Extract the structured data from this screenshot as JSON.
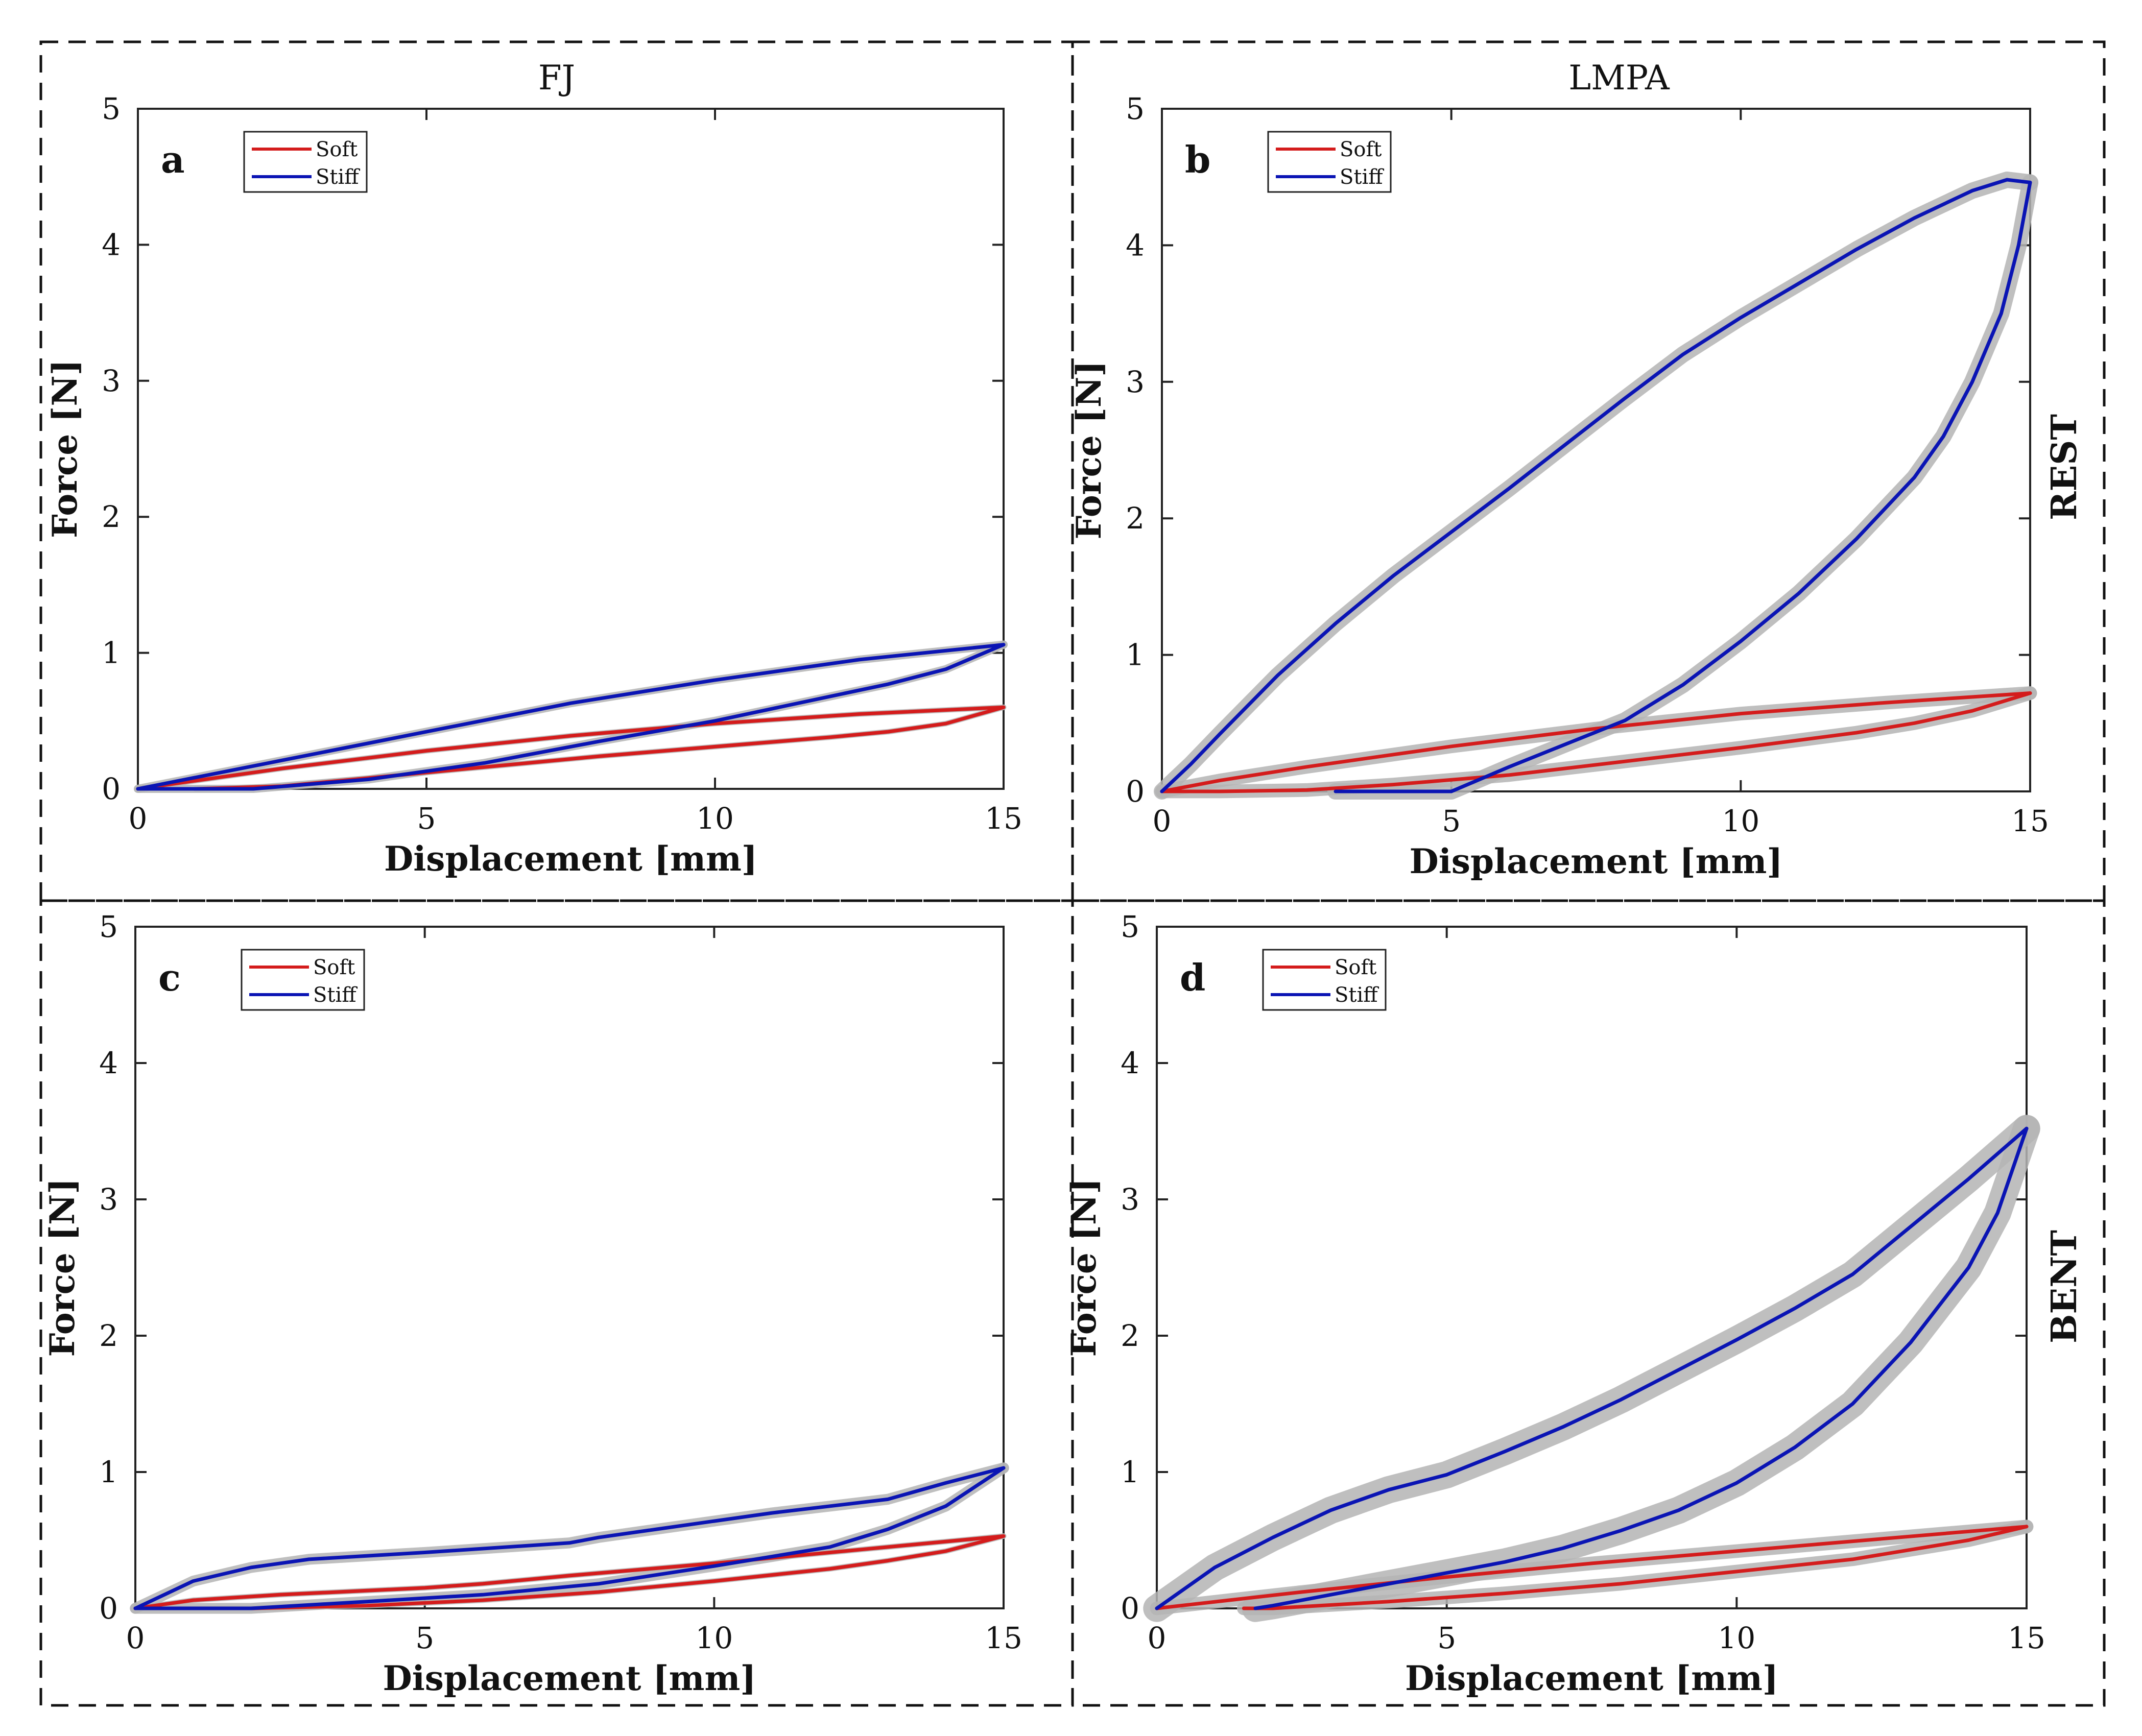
{
  "figure": {
    "column_titles": [
      "FJ",
      "LMPA"
    ],
    "row_titles": [
      "REST",
      "BENT"
    ]
  },
  "colors": {
    "soft": "#d41c1c",
    "stiff": "#0a14b4",
    "band": "#b4b4b4",
    "axis": "#222222",
    "dashes": "#111111"
  },
  "chart_data": [
    {
      "type": "line",
      "panel": "a",
      "title": "FJ",
      "xlabel": "Displacement [mm]",
      "ylabel": "Force [N]",
      "xlim": [
        0,
        15
      ],
      "ylim": [
        0,
        5
      ],
      "xticks": [
        "0",
        "5",
        "10",
        "15"
      ],
      "yticks": [
        "0",
        "1",
        "2",
        "3",
        "4",
        "5"
      ],
      "legend": [
        "Soft",
        "Stiff"
      ],
      "legend_position": "top-left",
      "series": [
        {
          "name": "Soft",
          "band": 0.02,
          "loading": [
            [
              0,
              0
            ],
            [
              1,
              0.06
            ],
            [
              2.5,
              0.15
            ],
            [
              5,
              0.28
            ],
            [
              7.5,
              0.39
            ],
            [
              10,
              0.48
            ],
            [
              12.5,
              0.55
            ],
            [
              15,
              0.6
            ]
          ],
          "unloading": [
            [
              15,
              0.6
            ],
            [
              14,
              0.48
            ],
            [
              13,
              0.42
            ],
            [
              12,
              0.38
            ],
            [
              10,
              0.31
            ],
            [
              8,
              0.24
            ],
            [
              6,
              0.16
            ],
            [
              4,
              0.08
            ],
            [
              2.5,
              0.02
            ],
            [
              1,
              0
            ]
          ]
        },
        {
          "name": "Stiff",
          "band": 0.03,
          "loading": [
            [
              0,
              0
            ],
            [
              2.5,
              0.21
            ],
            [
              5,
              0.42
            ],
            [
              7.5,
              0.63
            ],
            [
              10,
              0.8
            ],
            [
              12.5,
              0.95
            ],
            [
              15,
              1.06
            ]
          ],
          "unloading": [
            [
              15,
              1.06
            ],
            [
              14,
              0.88
            ],
            [
              13,
              0.77
            ],
            [
              12,
              0.68
            ],
            [
              10,
              0.5
            ],
            [
              8,
              0.35
            ],
            [
              6,
              0.19
            ],
            [
              4,
              0.07
            ],
            [
              2,
              0
            ],
            [
              0,
              0
            ]
          ]
        }
      ]
    },
    {
      "type": "line",
      "panel": "b",
      "title": "LMPA",
      "row_title": "REST",
      "xlabel": "Displacement [mm]",
      "ylabel": "Force [N]",
      "xlim": [
        0,
        15
      ],
      "ylim": [
        0,
        5
      ],
      "xticks": [
        "0",
        "5",
        "10",
        "15"
      ],
      "yticks": [
        "0",
        "1",
        "2",
        "3",
        "4",
        "5"
      ],
      "legend": [
        "Soft",
        "Stiff"
      ],
      "legend_position": "top-left",
      "series": [
        {
          "name": "Soft",
          "band": 0.05,
          "loading": [
            [
              0,
              0
            ],
            [
              1,
              0.08
            ],
            [
              2.5,
              0.18
            ],
            [
              5,
              0.33
            ],
            [
              7.5,
              0.46
            ],
            [
              10,
              0.57
            ],
            [
              12.5,
              0.65
            ],
            [
              15,
              0.72
            ]
          ],
          "unloading": [
            [
              15,
              0.72
            ],
            [
              14,
              0.59
            ],
            [
              13,
              0.5
            ],
            [
              12,
              0.43
            ],
            [
              10,
              0.32
            ],
            [
              8,
              0.22
            ],
            [
              6,
              0.12
            ],
            [
              4,
              0.05
            ],
            [
              2.5,
              0.01
            ],
            [
              1,
              0
            ],
            [
              0,
              0
            ]
          ]
        },
        {
          "name": "Stiff",
          "band": 0.06,
          "loading": [
            [
              0,
              0
            ],
            [
              0.5,
              0.2
            ],
            [
              1,
              0.42
            ],
            [
              2,
              0.85
            ],
            [
              3,
              1.23
            ],
            [
              4,
              1.58
            ],
            [
              5,
              1.9
            ],
            [
              6,
              2.22
            ],
            [
              7,
              2.55
            ],
            [
              8,
              2.88
            ],
            [
              9,
              3.2
            ],
            [
              10,
              3.47
            ],
            [
              11,
              3.72
            ],
            [
              12,
              3.97
            ],
            [
              13,
              4.2
            ],
            [
              14,
              4.4
            ],
            [
              14.6,
              4.48
            ],
            [
              15,
              4.46
            ]
          ],
          "unloading": [
            [
              15,
              4.46
            ],
            [
              14.8,
              4.0
            ],
            [
              14.5,
              3.5
            ],
            [
              14,
              3.0
            ],
            [
              13.5,
              2.6
            ],
            [
              13,
              2.3
            ],
            [
              12,
              1.85
            ],
            [
              11,
              1.45
            ],
            [
              10,
              1.1
            ],
            [
              9,
              0.78
            ],
            [
              8,
              0.52
            ],
            [
              7,
              0.35
            ],
            [
              6,
              0.18
            ],
            [
              5,
              0
            ],
            [
              4,
              0
            ],
            [
              3,
              0
            ]
          ]
        }
      ]
    },
    {
      "type": "line",
      "panel": "c",
      "xlabel": "Displacement [mm]",
      "ylabel": "Force [N]",
      "xlim": [
        0,
        15
      ],
      "ylim": [
        0,
        5
      ],
      "xticks": [
        "0",
        "5",
        "10",
        "15"
      ],
      "yticks": [
        "0",
        "1",
        "2",
        "3",
        "4",
        "5"
      ],
      "legend": [
        "Soft",
        "Stiff"
      ],
      "legend_position": "top-left",
      "series": [
        {
          "name": "Soft",
          "band": 0.02,
          "loading": [
            [
              0,
              0
            ],
            [
              1,
              0.06
            ],
            [
              2.5,
              0.1
            ],
            [
              5,
              0.15
            ],
            [
              6,
              0.18
            ],
            [
              7.5,
              0.24
            ],
            [
              10,
              0.33
            ],
            [
              12.5,
              0.43
            ],
            [
              15,
              0.53
            ]
          ],
          "unloading": [
            [
              15,
              0.53
            ],
            [
              14,
              0.42
            ],
            [
              13,
              0.35
            ],
            [
              12,
              0.29
            ],
            [
              10,
              0.2
            ],
            [
              8,
              0.12
            ],
            [
              6,
              0.06
            ],
            [
              4,
              0.02
            ],
            [
              2,
              0
            ],
            [
              0,
              0
            ]
          ]
        },
        {
          "name": "Stiff",
          "band": 0.04,
          "loading": [
            [
              0,
              0
            ],
            [
              0.5,
              0.1
            ],
            [
              1,
              0.2
            ],
            [
              2,
              0.3
            ],
            [
              3,
              0.36
            ],
            [
              5,
              0.41
            ],
            [
              7.5,
              0.48
            ],
            [
              8,
              0.52
            ],
            [
              9,
              0.58
            ],
            [
              10,
              0.64
            ],
            [
              11,
              0.7
            ],
            [
              12,
              0.75
            ],
            [
              13,
              0.8
            ],
            [
              14,
              0.92
            ],
            [
              15,
              1.03
            ]
          ],
          "unloading": [
            [
              15,
              1.03
            ],
            [
              14,
              0.75
            ],
            [
              13,
              0.58
            ],
            [
              12,
              0.45
            ],
            [
              10,
              0.31
            ],
            [
              8,
              0.18
            ],
            [
              6,
              0.1
            ],
            [
              4,
              0.05
            ],
            [
              2,
              0
            ],
            [
              0,
              0
            ]
          ]
        }
      ]
    },
    {
      "type": "line",
      "panel": "d",
      "row_title": "BENT",
      "xlabel": "Displacement [mm]",
      "ylabel": "Force [N]",
      "xlim": [
        0,
        15
      ],
      "ylim": [
        0,
        5
      ],
      "xticks": [
        "0",
        "5",
        "10",
        "15"
      ],
      "yticks": [
        "0",
        "1",
        "2",
        "3",
        "4",
        "5"
      ],
      "legend": [
        "Soft",
        "Stiff"
      ],
      "legend_position": "top-left",
      "series": [
        {
          "name": "Soft",
          "band": 0.05,
          "loading": [
            [
              0,
              0
            ],
            [
              2.5,
              0.12
            ],
            [
              5,
              0.23
            ],
            [
              7.5,
              0.33
            ],
            [
              10,
              0.42
            ],
            [
              12.5,
              0.51
            ],
            [
              15,
              0.6
            ]
          ],
          "unloading": [
            [
              15,
              0.6
            ],
            [
              14,
              0.5
            ],
            [
              13,
              0.43
            ],
            [
              12,
              0.36
            ],
            [
              10,
              0.27
            ],
            [
              8,
              0.18
            ],
            [
              6,
              0.11
            ],
            [
              4,
              0.05
            ],
            [
              2,
              0
            ],
            [
              1.5,
              0
            ]
          ]
        },
        {
          "name": "Stiff",
          "band": 0.1,
          "loading": [
            [
              0,
              0
            ],
            [
              1,
              0.3
            ],
            [
              2,
              0.52
            ],
            [
              3,
              0.72
            ],
            [
              4,
              0.87
            ],
            [
              5,
              0.98
            ],
            [
              6,
              1.15
            ],
            [
              7,
              1.33
            ],
            [
              8,
              1.53
            ],
            [
              9,
              1.75
            ],
            [
              10,
              1.97
            ],
            [
              11,
              2.2
            ],
            [
              12,
              2.45
            ],
            [
              13,
              2.8
            ],
            [
              14,
              3.15
            ],
            [
              15,
              3.52
            ]
          ],
          "unloading": [
            [
              15,
              3.52
            ],
            [
              14.5,
              2.9
            ],
            [
              14,
              2.5
            ],
            [
              13,
              1.95
            ],
            [
              12,
              1.5
            ],
            [
              11,
              1.18
            ],
            [
              10,
              0.92
            ],
            [
              9,
              0.72
            ],
            [
              8,
              0.57
            ],
            [
              7,
              0.44
            ],
            [
              6,
              0.34
            ],
            [
              5,
              0.26
            ],
            [
              4,
              0.18
            ],
            [
              3,
              0.1
            ],
            [
              2,
              0.02
            ],
            [
              1.7,
              0
            ]
          ]
        }
      ]
    }
  ]
}
